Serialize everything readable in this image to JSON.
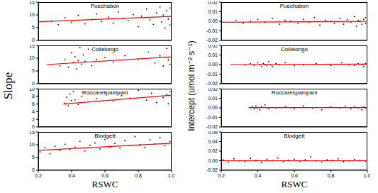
{
  "chart_data": [
    {
      "type": "scatter",
      "title": "Puechabon",
      "color": "#000000",
      "xlim": [
        0.2,
        1.0
      ],
      "xticks": [
        0.2,
        0.4,
        0.6,
        0.8,
        {
          "value": 1,
          "label": "1.0"
        }
      ],
      "ylim": [
        0,
        15
      ],
      "yticks": [
        0,
        5,
        10,
        15
      ],
      "tick_labels": "y",
      "x": [
        0.28,
        0.32,
        0.36,
        0.4,
        0.44,
        0.48,
        0.52,
        0.55,
        0.58,
        0.62,
        0.65,
        0.68,
        0.71,
        0.74,
        0.77,
        0.8,
        0.82,
        0.85,
        0.87,
        0.89,
        0.91,
        0.93,
        0.94,
        0.95,
        0.96,
        0.97,
        0.98,
        0.99,
        0.99,
        1.0
      ],
      "values": [
        7.5,
        6.2,
        8.9,
        7.1,
        9.8,
        6.5,
        8.2,
        10.4,
        7.4,
        9.1,
        6.8,
        11.2,
        8.6,
        7.9,
        10.1,
        5.4,
        9.5,
        12.3,
        8.1,
        6.3,
        10.8,
        13.1,
        7.2,
        9.9,
        4.8,
        11.6,
        8.4,
        6.1,
        12.7,
        9.2
      ],
      "fit": {
        "x": [
          0.2,
          1.0
        ],
        "values": [
          7.3,
          9.4
        ],
        "color": "#ff0000"
      }
    },
    {
      "type": "scatter",
      "title": "Collelongo",
      "color": "#000000",
      "xlim": [
        0.2,
        1.0
      ],
      "xticks": [
        0.2,
        0.4,
        0.6,
        0.8,
        {
          "value": 1,
          "label": "1.0"
        }
      ],
      "ylim": [
        0,
        15
      ],
      "yticks": [
        0,
        5,
        10,
        15
      ],
      "tick_labels": "y",
      "ylabel": "Slope",
      "x": [
        0.33,
        0.36,
        0.38,
        0.4,
        0.41,
        0.42,
        0.43,
        0.44,
        0.45,
        0.46,
        0.47,
        0.48,
        0.5,
        0.52,
        0.55,
        0.6,
        0.65,
        0.72,
        0.8,
        0.86,
        0.9,
        0.93,
        0.95,
        0.97,
        0.98,
        0.99,
        1.0
      ],
      "values": [
        7.0,
        9.5,
        6.4,
        12.1,
        8.3,
        10.6,
        5.8,
        9.0,
        14.2,
        7.7,
        11.3,
        8.8,
        13.5,
        7.1,
        9.4,
        10.2,
        8.5,
        11.0,
        9.7,
        12.4,
        8.1,
        10.9,
        6.9,
        13.8,
        9.3,
        7.6,
        11.8
      ],
      "fit": {
        "x": [
          0.25,
          1.0
        ],
        "values": [
          7.5,
          10.5
        ],
        "color": "#ff0000"
      }
    },
    {
      "type": "scatter",
      "title": "Roccarespampani",
      "color": "#000000",
      "xlim": [
        0.2,
        1.0
      ],
      "xticks": [
        0.2,
        0.4,
        0.6,
        0.8,
        {
          "value": 1,
          "label": "1.0"
        }
      ],
      "ylim": [
        0,
        10
      ],
      "yticks": [
        0,
        2,
        4,
        6,
        8,
        10
      ],
      "tick_labels": "y",
      "x": [
        0.36,
        0.37,
        0.38,
        0.39,
        0.4,
        0.41,
        0.42,
        0.44,
        0.46,
        0.5,
        0.55,
        0.6,
        0.65,
        0.7,
        0.75,
        0.8,
        0.85,
        0.88,
        0.91,
        0.93,
        0.95,
        0.97,
        0.98,
        0.99,
        1.0
      ],
      "values": [
        6.2,
        7.8,
        5.5,
        8.6,
        6.9,
        9.3,
        7.1,
        5.9,
        8.0,
        6.6,
        7.4,
        9.1,
        6.8,
        8.2,
        7.5,
        9.6,
        7.0,
        8.8,
        6.4,
        9.9,
        7.7,
        8.4,
        6.1,
        9.2,
        7.9
      ],
      "fit": {
        "x": [
          0.35,
          1.0
        ],
        "values": [
          6.0,
          8.3
        ],
        "color": "#ff0000"
      }
    },
    {
      "type": "scatter",
      "title": "Blodgett",
      "color": "#000000",
      "xlim": [
        0.2,
        1.0
      ],
      "xticks": [
        0.2,
        0.4,
        0.6,
        0.8,
        {
          "value": 1,
          "label": "1.0"
        }
      ],
      "ylim": [
        0,
        15
      ],
      "yticks": [
        0,
        5,
        10,
        15
      ],
      "xlabel": "RSWC",
      "x": [
        0.21,
        0.24,
        0.27,
        0.3,
        0.33,
        0.36,
        0.39,
        0.42,
        0.45,
        0.48,
        0.51,
        0.54,
        0.57,
        0.6,
        0.63,
        0.66,
        0.69,
        0.72,
        0.75,
        0.78,
        0.81,
        0.84,
        0.87,
        0.9,
        0.93,
        0.96,
        0.99
      ],
      "values": [
        7.2,
        8.9,
        6.5,
        9.4,
        7.8,
        10.2,
        8.1,
        9.0,
        11.3,
        7.6,
        9.8,
        10.7,
        8.4,
        12.0,
        9.1,
        10.5,
        8.8,
        11.6,
        9.7,
        13.2,
        10.1,
        8.9,
        11.9,
        10.4,
        12.8,
        9.6,
        11.2
      ],
      "fit": {
        "x": [
          0.2,
          1.0
        ],
        "values": [
          7.8,
          10.6
        ],
        "color": "#ff0000"
      }
    },
    {
      "type": "scatter",
      "title": "Puechabon",
      "color": "#000000",
      "xlim": [
        0.2,
        1.0
      ],
      "xticks": [
        0.2,
        0.4,
        0.6,
        0.8,
        {
          "value": 1,
          "label": "1.0"
        }
      ],
      "ylim": [
        -0.02,
        0.02
      ],
      "yticks": [
        -0.02,
        -0.01,
        {
          "value": 0,
          "label": "0.00"
        },
        0.01,
        0.02
      ],
      "tick_labels": "y",
      "x": [
        0.28,
        0.32,
        0.36,
        0.4,
        0.44,
        0.48,
        0.52,
        0.55,
        0.58,
        0.62,
        0.65,
        0.68,
        0.71,
        0.74,
        0.77,
        0.8,
        0.82,
        0.85,
        0.87,
        0.89,
        0.91,
        0.93,
        0.94,
        0.95,
        0.96,
        0.97,
        0.98,
        0.99,
        0.99,
        1.0
      ],
      "values": [
        0.001,
        -0.002,
        0.0,
        0.002,
        -0.001,
        0.003,
        -0.003,
        0.001,
        0.0,
        -0.002,
        0.002,
        -0.001,
        0.004,
        -0.004,
        0.001,
        0.0,
        -0.002,
        0.003,
        -0.003,
        0.002,
        -0.001,
        0.005,
        -0.005,
        0.001,
        0.0,
        -0.003,
        0.002,
        0.004,
        -0.002,
        0.001
      ],
      "fit": {
        "x": [
          0.2,
          1.0
        ],
        "values": [
          -0.001,
          0.0
        ],
        "color": "#ff0000"
      }
    },
    {
      "type": "scatter",
      "title": "Collelongo",
      "color": "#000000",
      "xlim": [
        0.2,
        1.0
      ],
      "xticks": [
        0.2,
        0.4,
        0.6,
        0.8,
        {
          "value": 1,
          "label": "1.0"
        }
      ],
      "ylim": [
        -0.02,
        0.02
      ],
      "yticks": [
        -0.02,
        -0.01,
        {
          "value": 0,
          "label": "0.00"
        },
        0.01,
        0.02
      ],
      "tick_labels": "y",
      "ylabel": "Intercept (umol m⁻² s⁻¹)",
      "x": [
        0.33,
        0.36,
        0.38,
        0.4,
        0.41,
        0.42,
        0.43,
        0.44,
        0.45,
        0.46,
        0.47,
        0.48,
        0.5,
        0.52,
        0.55,
        0.6,
        0.65,
        0.72,
        0.8,
        0.86,
        0.9,
        0.93,
        0.95,
        0.97,
        0.98,
        0.99,
        1.0
      ],
      "values": [
        0.0,
        0.001,
        -0.001,
        0.002,
        0.0,
        -0.002,
        0.001,
        0.0,
        -0.001,
        0.003,
        0.0,
        -0.002,
        0.001,
        0.0,
        0.002,
        -0.001,
        0.0,
        0.001,
        -0.001,
        0.002,
        0.0,
        -0.001,
        0.001,
        0.0,
        -0.002,
        0.001,
        0.0
      ],
      "fit": {
        "x": [
          0.25,
          1.0
        ],
        "values": [
          0.0,
          0.0005
        ],
        "color": "#ff0000"
      }
    },
    {
      "type": "scatter",
      "title": "Roccarespampani",
      "color": "#000000",
      "xlim": [
        0.2,
        1.0
      ],
      "xticks": [
        0.2,
        0.4,
        0.6,
        0.8,
        {
          "value": 1,
          "label": "1.0"
        }
      ],
      "ylim": [
        -0.02,
        0.02
      ],
      "yticks": [
        -0.02,
        -0.01,
        {
          "value": 0,
          "label": "0.00"
        },
        0.01,
        0.02
      ],
      "tick_labels": "y",
      "x": [
        0.36,
        0.37,
        0.38,
        0.39,
        0.4,
        0.41,
        0.42,
        0.44,
        0.46,
        0.5,
        0.55,
        0.6,
        0.65,
        0.7,
        0.75,
        0.8,
        0.85,
        0.88,
        0.91,
        0.93,
        0.95,
        0.97,
        0.98,
        0.99,
        1.0
      ],
      "values": [
        0.0,
        0.001,
        -0.001,
        0.002,
        0.0,
        -0.002,
        0.001,
        0.003,
        -0.001,
        0.0,
        0.001,
        -0.001,
        0.002,
        0.0,
        -0.002,
        0.001,
        0.0,
        0.002,
        -0.001,
        0.001,
        0.0,
        -0.002,
        0.001,
        0.0,
        0.002
      ],
      "fit": {
        "x": [
          0.35,
          1.0
        ],
        "values": [
          0.0003,
          0.0003
        ],
        "color": "#ff0000"
      }
    },
    {
      "type": "scatter",
      "title": "Blodgett",
      "color": "#000000",
      "xlim": [
        0.2,
        1.0
      ],
      "xticks": [
        0.2,
        0.4,
        0.6,
        0.8,
        {
          "value": 1,
          "label": "1.0"
        }
      ],
      "ylim": [
        -0.02,
        0.06
      ],
      "yticks": [
        -0.02,
        {
          "value": 0,
          "label": "0.00"
        },
        0.02,
        0.04,
        0.06
      ],
      "xlabel": "RSWC",
      "x": [
        0.21,
        0.24,
        0.27,
        0.3,
        0.33,
        0.36,
        0.39,
        0.42,
        0.45,
        0.48,
        0.51,
        0.54,
        0.57,
        0.6,
        0.63,
        0.66,
        0.69,
        0.72,
        0.75,
        0.78,
        0.81,
        0.84,
        0.87,
        0.9,
        0.93,
        0.96,
        0.99
      ],
      "values": [
        0.002,
        -0.003,
        0.004,
        0.0,
        -0.002,
        0.005,
        0.001,
        -0.004,
        0.003,
        0.0,
        0.006,
        -0.002,
        0.001,
        0.003,
        -0.001,
        0.002,
        0.008,
        0.0,
        -0.003,
        0.002,
        0.001,
        0.004,
        -0.002,
        0.0,
        0.003,
        0.001,
        -0.001
      ],
      "fit": {
        "x": [
          0.2,
          1.0
        ],
        "values": [
          0.0,
          0.0
        ],
        "color": "#ff0000"
      }
    }
  ]
}
